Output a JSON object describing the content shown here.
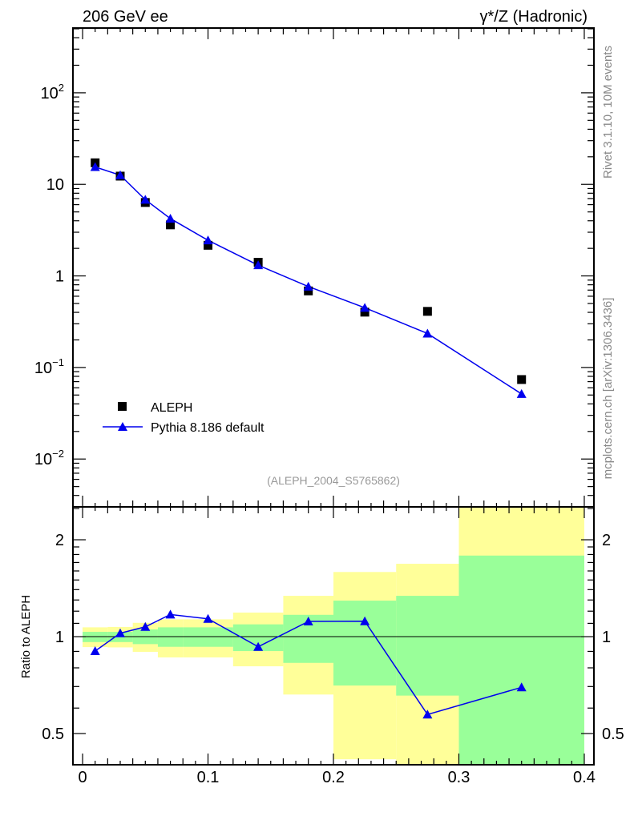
{
  "chart_data": [
    {
      "type": "scatter",
      "panel": "main",
      "title": "206 GeV ee",
      "title_right": "γ*/Z (Hadronic)",
      "xlabel": "",
      "ylabel": "",
      "yscale": "log",
      "xlim": [
        -0.0077,
        0.4077
      ],
      "ylim": [
        0.003,
        510
      ],
      "ytick_labels": [
        {
          "value": 100,
          "base": "10",
          "exp": "2"
        },
        {
          "value": 10,
          "base": "10",
          "exp": ""
        },
        {
          "value": 1,
          "base": "1",
          "exp": ""
        },
        {
          "value": 0.1,
          "base": "10",
          "exp": "−1"
        },
        {
          "value": 0.01,
          "base": "10",
          "exp": "−2"
        }
      ],
      "x": [
        0.01,
        0.03,
        0.05,
        0.07,
        0.1,
        0.14,
        0.18,
        0.225,
        0.275,
        0.35
      ],
      "series": [
        {
          "name": "ALEPH",
          "marker": "square",
          "color": "#000000",
          "values": [
            17.2,
            12.3,
            6.34,
            3.61,
            2.16,
            1.41,
            0.686,
            0.402,
            0.41,
            0.0738
          ]
        },
        {
          "name": "Pythia 8.186 default",
          "marker": "triangle",
          "color": "#0000ee",
          "values": [
            15.5,
            12.6,
            6.8,
            4.23,
            2.45,
            1.31,
            0.765,
            0.449,
            0.235,
            0.0514
          ]
        }
      ],
      "legend_position": "bottom-left",
      "annotation": "(ALEPH_2004_S5765862)"
    },
    {
      "type": "line",
      "panel": "ratio",
      "ylabel": "Ratio to ALEPH",
      "yscale": "log",
      "xlim": [
        -0.0077,
        0.4077
      ],
      "ylim": [
        0.4,
        2.53
      ],
      "ytick_labels": [
        "0.5",
        "1",
        "2"
      ],
      "ytick_values": [
        0.5,
        1,
        2
      ],
      "xtick_labels": [
        "0",
        "0.1",
        "0.2",
        "0.3",
        "0.4"
      ],
      "xtick_values": [
        0,
        0.1,
        0.2,
        0.3,
        0.4
      ],
      "x": [
        0.01,
        0.03,
        0.05,
        0.07,
        0.1,
        0.14,
        0.18,
        0.225,
        0.275,
        0.35
      ],
      "series": [
        {
          "name": "Pythia 8.186 default",
          "color": "#0000ee",
          "values": [
            0.902,
            1.025,
            1.073,
            1.172,
            1.136,
            0.93,
            1.115,
            1.117,
            0.573,
            0.696
          ]
        }
      ],
      "bin_edges": [
        0,
        0.02,
        0.04,
        0.06,
        0.08,
        0.12,
        0.16,
        0.2,
        0.25,
        0.3,
        0.4
      ],
      "band_total": {
        "color": "#ffff99",
        "low": [
          0.928,
          0.926,
          0.897,
          0.862,
          0.862,
          0.809,
          0.661,
          0.416,
          0.3,
          0.3
        ],
        "high": [
          1.069,
          1.072,
          1.104,
          1.132,
          1.132,
          1.188,
          1.339,
          1.588,
          1.684,
          3.0
        ]
      },
      "band_stat": {
        "color": "#99ff99",
        "low": [
          0.962,
          0.962,
          0.948,
          0.93,
          0.93,
          0.902,
          0.829,
          0.705,
          0.656,
          0.3
        ],
        "high": [
          1.035,
          1.035,
          1.053,
          1.069,
          1.069,
          1.092,
          1.169,
          1.294,
          1.339,
          1.786
        ]
      }
    }
  ],
  "side_labels": {
    "rivet": "Rivet 3.1.10,  10M events",
    "mcplots": "mcplots.cern.ch [arXiv:1306.3436]"
  }
}
